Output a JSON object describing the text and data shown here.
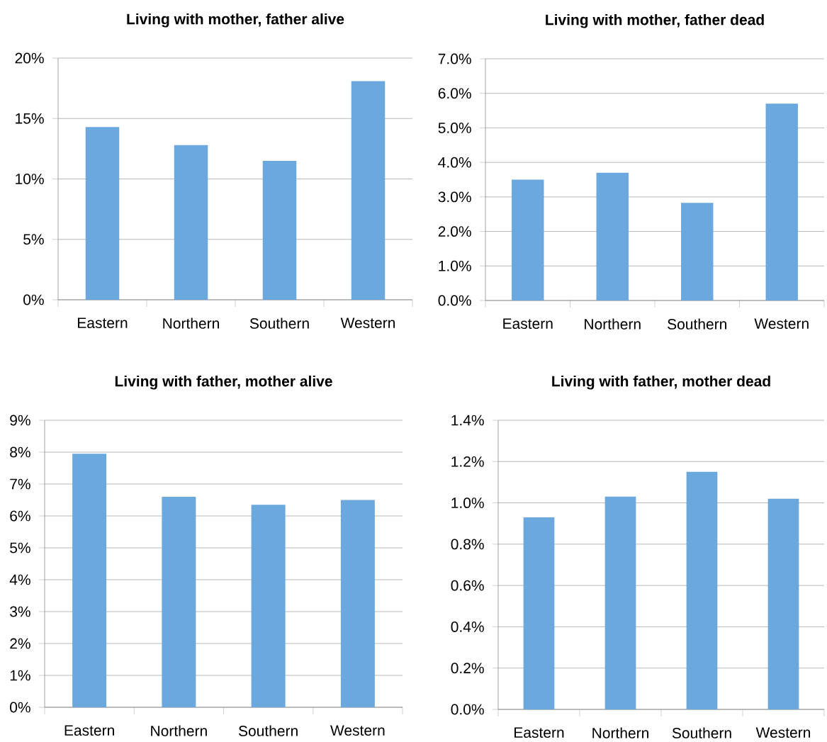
{
  "chart_data": [
    {
      "type": "bar",
      "title": "Living with mother, father alive",
      "categories": [
        "Eastern",
        "Northern",
        "Southern",
        "Western"
      ],
      "values": [
        14.3,
        12.8,
        11.5,
        18.1
      ],
      "color": "#6aa8de",
      "ylim": [
        0,
        20
      ],
      "yticks": [
        {
          "value": 0,
          "label": "0%"
        },
        {
          "value": 5,
          "label": "5%"
        },
        {
          "value": 10,
          "label": "10%"
        },
        {
          "value": 15,
          "label": "15%"
        },
        {
          "value": 20,
          "label": "20%"
        }
      ],
      "grid": "y"
    },
    {
      "type": "bar",
      "title": "Living with mother, father dead",
      "categories": [
        "Eastern",
        "Northern",
        "Southern",
        "Western"
      ],
      "values": [
        3.5,
        3.7,
        2.83,
        5.7
      ],
      "color": "#6aa8de",
      "ylim": [
        0,
        7
      ],
      "yticks": [
        {
          "value": 0,
          "label": "0.0%"
        },
        {
          "value": 1,
          "label": "1.0%"
        },
        {
          "value": 2,
          "label": "2.0%"
        },
        {
          "value": 3,
          "label": "3.0%"
        },
        {
          "value": 4,
          "label": "4.0%"
        },
        {
          "value": 5,
          "label": "5.0%"
        },
        {
          "value": 6,
          "label": "6.0%"
        },
        {
          "value": 7,
          "label": "7.0%"
        }
      ],
      "grid": "y"
    },
    {
      "type": "bar",
      "title": "Living with father, mother alive",
      "categories": [
        "Eastern",
        "Northern",
        "Southern",
        "Western"
      ],
      "values": [
        7.95,
        6.6,
        6.35,
        6.5
      ],
      "color": "#6aa8de",
      "ylim": [
        0,
        9
      ],
      "yticks": [
        {
          "value": 0,
          "label": "0%"
        },
        {
          "value": 1,
          "label": "1%"
        },
        {
          "value": 2,
          "label": "2%"
        },
        {
          "value": 3,
          "label": "3%"
        },
        {
          "value": 4,
          "label": "4%"
        },
        {
          "value": 5,
          "label": "5%"
        },
        {
          "value": 6,
          "label": "6%"
        },
        {
          "value": 7,
          "label": "7%"
        },
        {
          "value": 8,
          "label": "8%"
        },
        {
          "value": 9,
          "label": "9%"
        }
      ],
      "grid": "y"
    },
    {
      "type": "bar",
      "title": "Living with father, mother dead",
      "categories": [
        "Eastern",
        "Northern",
        "Southern",
        "Western"
      ],
      "values": [
        0.93,
        1.03,
        1.15,
        1.02
      ],
      "color": "#6aa8de",
      "ylim": [
        0,
        1.4
      ],
      "yticks": [
        {
          "value": 0,
          "label": "0.0%"
        },
        {
          "value": 0.2,
          "label": "0.2%"
        },
        {
          "value": 0.4,
          "label": "0.4%"
        },
        {
          "value": 0.6,
          "label": "0.6%"
        },
        {
          "value": 0.8,
          "label": "0.8%"
        },
        {
          "value": 1.0,
          "label": "1.0%"
        },
        {
          "value": 1.2,
          "label": "1.2%"
        },
        {
          "value": 1.4,
          "label": "1.4%"
        }
      ],
      "grid": "y"
    }
  ]
}
